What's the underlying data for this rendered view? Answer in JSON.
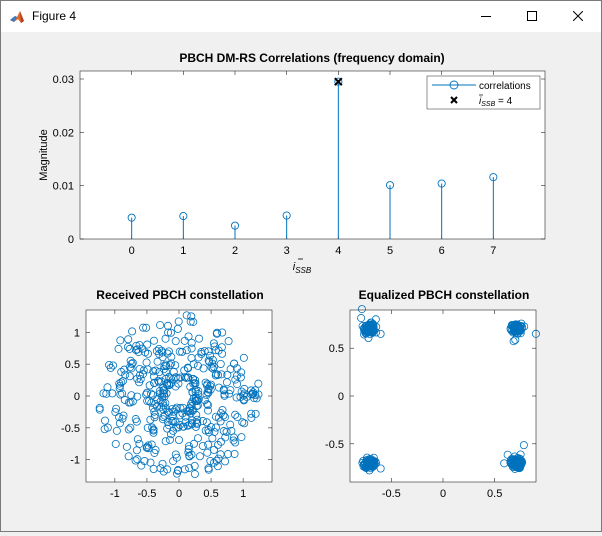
{
  "window": {
    "title": "Figure 4",
    "controls": {
      "minimize": "minimize",
      "maximize": "maximize",
      "close": "close"
    }
  },
  "colors": {
    "series": "#0072bd",
    "marker_peak": "#000000",
    "axes_bg": "#ffffff",
    "figure_bg": "#f0f0f0"
  },
  "chart_data": [
    {
      "type": "stem",
      "title": "PBCH DM-RS Correlations (frequency domain)",
      "xlabel": "ī_SSB",
      "ylabel": "Magnitude",
      "xlim": [
        -1,
        8
      ],
      "ylim": [
        0,
        0.0315
      ],
      "x": [
        0,
        1,
        2,
        3,
        4,
        5,
        6,
        7
      ],
      "xticks": [
        "0",
        "1",
        "2",
        "3",
        "4",
        "5",
        "6",
        "7"
      ],
      "yticks": [
        "0",
        "0.01",
        "0.02",
        "0.03"
      ],
      "ytick_values": [
        0,
        0.01,
        0.02,
        0.03
      ],
      "series": [
        {
          "name": "correlations",
          "values": [
            0.004,
            0.0043,
            0.0025,
            0.0044,
            0.0295,
            0.0101,
            0.0104,
            0.0116
          ]
        }
      ],
      "detected": {
        "name": "ī_SSB = 4",
        "x": 4,
        "y": 0.0295
      },
      "legend": {
        "position": "top-right",
        "entries": [
          "correlations",
          "ī_SSB = 4"
        ]
      },
      "grid": false
    },
    {
      "type": "scatter",
      "title": "Received PBCH constellation",
      "xlim": [
        -1.45,
        1.45
      ],
      "ylim": [
        -1.35,
        1.35
      ],
      "xticks": [
        "-1",
        "-0.5",
        "0",
        "0.5",
        "1"
      ],
      "xtick_values": [
        -1,
        -0.5,
        0,
        0.5,
        1
      ],
      "yticks": [
        "1",
        "0.5",
        "0",
        "-0.5",
        "-1"
      ],
      "ytick_values": [
        1,
        0.5,
        0,
        -0.5,
        -1
      ],
      "description": "approx. 432 points scattered on several rings of radius ~0.25-1.2",
      "grid": false
    },
    {
      "type": "scatter",
      "title": "Equalized PBCH constellation",
      "xlim": [
        -0.9,
        0.9
      ],
      "ylim": [
        -0.9,
        0.9
      ],
      "xticks": [
        "-0.5",
        "0",
        "0.5"
      ],
      "xtick_values": [
        -0.5,
        0,
        0.5
      ],
      "yticks": [
        "0.5",
        "0",
        "-0.5"
      ],
      "ytick_values": [
        0.5,
        0,
        -0.5
      ],
      "clusters": [
        {
          "x": -0.707,
          "y": 0.707
        },
        {
          "x": 0.707,
          "y": 0.707
        },
        {
          "x": -0.707,
          "y": -0.707
        },
        {
          "x": 0.707,
          "y": -0.707
        }
      ],
      "grid": false
    }
  ]
}
